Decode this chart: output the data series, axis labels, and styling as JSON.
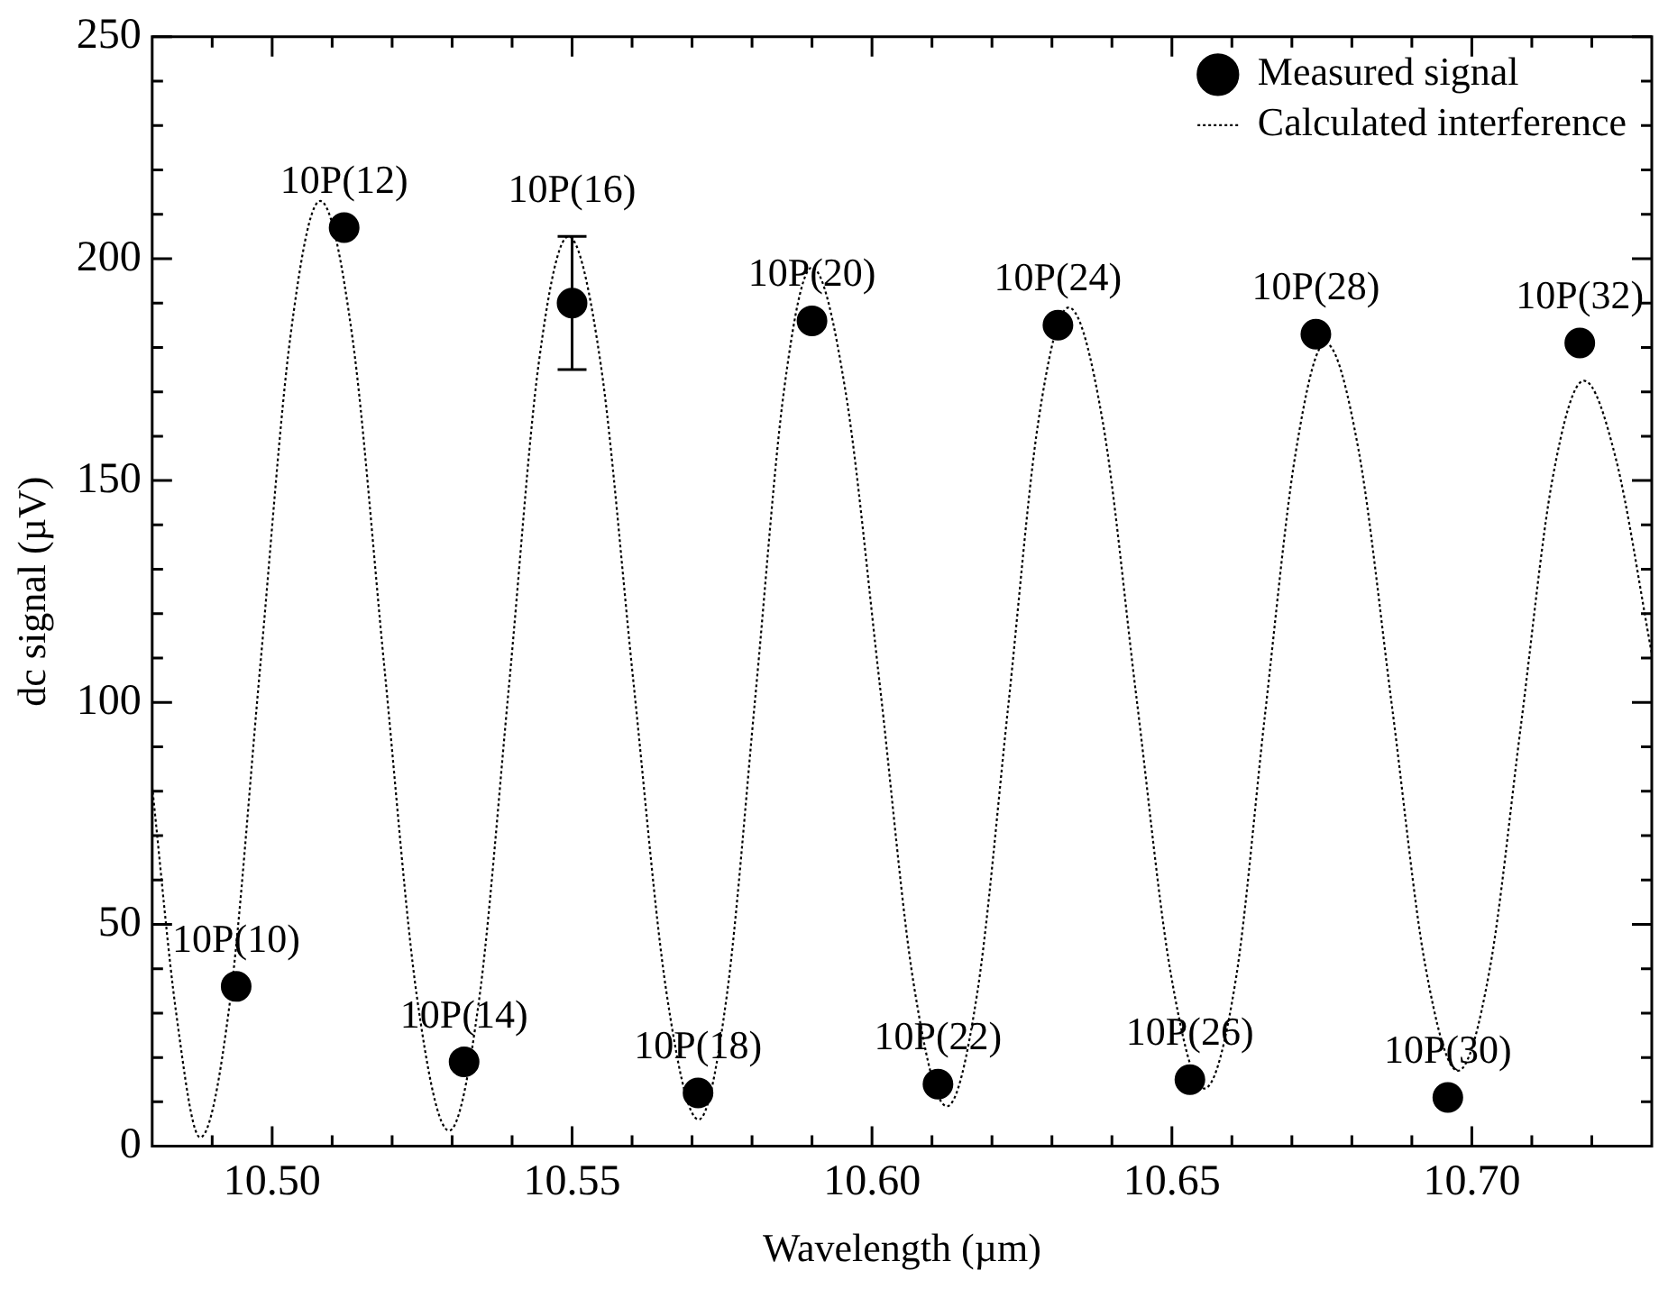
{
  "chart_data": {
    "type": "scatter",
    "xlabel": "Wavelength (µm)",
    "ylabel": "dc signal (µV)",
    "xlim": [
      10.48,
      10.73
    ],
    "xticks": [
      {
        "value": 10.49,
        "label": null
      },
      {
        "value": 10.5,
        "label": "10.50"
      },
      {
        "value": 10.51,
        "label": null
      },
      {
        "value": 10.52,
        "label": null
      },
      {
        "value": 10.53,
        "label": null
      },
      {
        "value": 10.54,
        "label": null
      },
      {
        "value": 10.55,
        "label": "10.55"
      },
      {
        "value": 10.56,
        "label": null
      },
      {
        "value": 10.57,
        "label": null
      },
      {
        "value": 10.58,
        "label": null
      },
      {
        "value": 10.59,
        "label": null
      },
      {
        "value": 10.6,
        "label": "10.60"
      },
      {
        "value": 10.61,
        "label": null
      },
      {
        "value": 10.62,
        "label": null
      },
      {
        "value": 10.63,
        "label": null
      },
      {
        "value": 10.64,
        "label": null
      },
      {
        "value": 10.65,
        "label": "10.65"
      },
      {
        "value": 10.66,
        "label": null
      },
      {
        "value": 10.67,
        "label": null
      },
      {
        "value": 10.68,
        "label": null
      },
      {
        "value": 10.69,
        "label": null
      },
      {
        "value": 10.7,
        "label": "10.70"
      },
      {
        "value": 10.71,
        "label": null
      },
      {
        "value": 10.72,
        "label": null
      }
    ],
    "ylim": [
      0,
      250
    ],
    "yticks": [
      0,
      {
        "value": 10,
        "label": null
      },
      {
        "value": 20,
        "label": null
      },
      {
        "value": 30,
        "label": null
      },
      {
        "value": 40,
        "label": null
      },
      50,
      {
        "value": 60,
        "label": null
      },
      {
        "value": 70,
        "label": null
      },
      {
        "value": 80,
        "label": null
      },
      {
        "value": 90,
        "label": null
      },
      100,
      {
        "value": 110,
        "label": null
      },
      {
        "value": 120,
        "label": null
      },
      {
        "value": 130,
        "label": null
      },
      {
        "value": 140,
        "label": null
      },
      150,
      {
        "value": 160,
        "label": null
      },
      {
        "value": 170,
        "label": null
      },
      {
        "value": 180,
        "label": null
      },
      {
        "value": 190,
        "label": null
      },
      200,
      {
        "value": 210,
        "label": null
      },
      {
        "value": 220,
        "label": null
      },
      {
        "value": 230,
        "label": null
      },
      {
        "value": 240,
        "label": null
      },
      250
    ],
    "grid": false,
    "legend": "top right",
    "series": [
      {
        "name": "Measured signal",
        "color": "#000000",
        "marker": "circle",
        "x": [
          10.494,
          10.512,
          10.532,
          10.55,
          10.571,
          10.59,
          10.611,
          10.631,
          10.653,
          10.674,
          10.696,
          10.718
        ],
        "values": [
          36,
          207,
          19,
          190,
          12,
          186,
          14,
          185,
          15,
          183,
          11,
          181
        ],
        "errors": [
          null,
          null,
          null,
          15,
          null,
          null,
          null,
          null,
          null,
          null,
          null,
          null
        ]
      },
      {
        "name": "Calculated interference",
        "type": "line",
        "color": "#000000",
        "marker": "none",
        "line_style": "dotted",
        "x": [
          10.48,
          10.484,
          10.488,
          10.493,
          10.498,
          10.503,
          10.508,
          10.5134,
          10.5187,
          10.5241,
          10.5295,
          10.5345,
          10.5395,
          10.5444,
          10.5494,
          10.5548,
          10.5602,
          10.5657,
          10.5711,
          10.5758,
          10.5806,
          10.5853,
          10.59,
          10.5956,
          10.6013,
          10.6069,
          10.6125,
          10.6176,
          10.6227,
          10.6277,
          10.6328,
          10.6385,
          10.6441,
          10.6498,
          10.6554,
          10.6607,
          10.6655,
          10.6706,
          10.6756,
          10.6811,
          10.6867,
          10.6922,
          10.6977,
          10.703,
          10.7082,
          10.7134,
          10.7187,
          10.724,
          10.73
        ],
        "values": [
          81,
          30,
          2,
          33,
          108,
          182,
          213,
          182,
          108,
          34,
          3.5,
          33,
          104,
          176,
          205,
          176,
          105,
          35,
          6,
          34,
          102,
          170,
          198,
          170,
          104,
          37,
          9,
          35,
          99,
          163,
          189,
          163,
          101,
          39,
          13,
          38,
          97,
          156,
          181,
          157,
          99,
          41,
          17,
          40,
          95,
          150,
          172.5,
          155,
          111
        ]
      }
    ],
    "annotations": [
      {
        "text": "10P(10)",
        "x": 10.494,
        "y": 36
      },
      {
        "text": "10P(12)",
        "x": 10.512,
        "y": 207
      },
      {
        "text": "10P(14)",
        "x": 10.532,
        "y": 19
      },
      {
        "text": "10P(16)",
        "x": 10.55,
        "y": 205
      },
      {
        "text": "10P(18)",
        "x": 10.571,
        "y": 12
      },
      {
        "text": "10P(20)",
        "x": 10.59,
        "y": 186
      },
      {
        "text": "10P(22)",
        "x": 10.611,
        "y": 14
      },
      {
        "text": "10P(24)",
        "x": 10.631,
        "y": 185
      },
      {
        "text": "10P(26)",
        "x": 10.653,
        "y": 15
      },
      {
        "text": "10P(28)",
        "x": 10.674,
        "y": 183
      },
      {
        "text": "10P(30)",
        "x": 10.696,
        "y": 11
      },
      {
        "text": "10P(32)",
        "x": 10.718,
        "y": 181
      }
    ]
  }
}
